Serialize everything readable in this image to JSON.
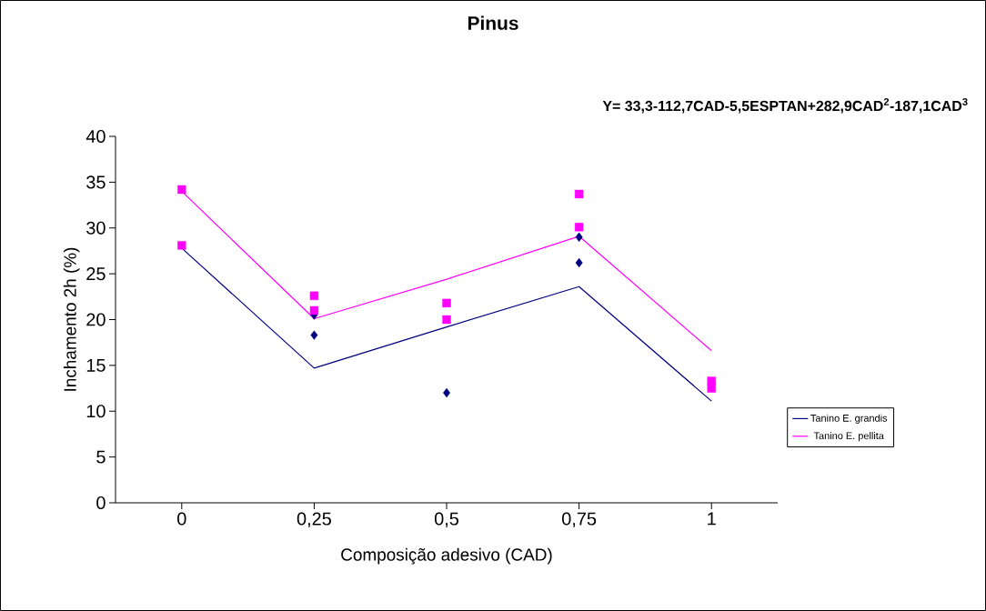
{
  "chart_data": {
    "type": "line",
    "title": "Pinus",
    "annotations": [
      "Y= 33,3-112,7CAD-5,5ESPTAN+282,9CAD$^{2}$-187,1CAD$^{3}$"
    ],
    "xlabel": "Composição adesivo (CAD)",
    "ylabel": "Inchamento 2h (%)",
    "xlim": [
      -0.125,
      1.125
    ],
    "xticks": [
      0,
      {
        "value": 0.25,
        "label": "0,25"
      },
      {
        "value": 0.5,
        "label": "0,5"
      },
      {
        "value": 0.75,
        "label": "0,75"
      },
      1
    ],
    "ylim": [
      0,
      40
    ],
    "yticks": [
      0,
      5,
      10,
      15,
      20,
      25,
      30,
      35,
      40
    ],
    "grid": false,
    "legend": "right",
    "marker": "none",
    "line_style": "solid",
    "series": [
      {
        "name": "Tanino E. grandis",
        "color": "#000080",
        "x": [
          0,
          0.25,
          0.5,
          0.75,
          1
        ],
        "values": [
          27.8,
          14.7,
          19.2,
          23.6,
          11.1
        ]
      },
      {
        "name": "Tanino E. pellita",
        "color": "#ff00ff",
        "x": [
          0,
          0.25,
          0.5,
          0.75,
          1
        ],
        "values": [
          34.0,
          20.1,
          24.4,
          29.1,
          16.6
        ]
      },
      {
        "type": "scatter",
        "marker": "diamond",
        "color": "#000080",
        "x": [
          0.25,
          0.25,
          0.5,
          0.75,
          0.75
        ],
        "values": [
          20.5,
          18.3,
          12.0,
          29.0,
          26.2
        ]
      },
      {
        "type": "scatter",
        "marker": "square",
        "color": "#ff00ff",
        "x": [
          0,
          0,
          0.25,
          0.25,
          0.5,
          0.5,
          0.75,
          0.75,
          1,
          1
        ],
        "values": [
          34.2,
          28.1,
          22.6,
          21.0,
          21.8,
          20.0,
          33.7,
          30.1,
          13.3,
          12.5
        ]
      }
    ]
  }
}
